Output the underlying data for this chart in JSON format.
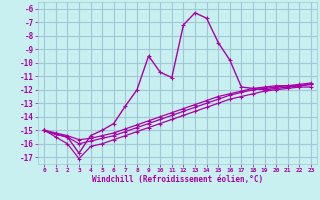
{
  "xlabel": "Windchill (Refroidissement éolien,°C)",
  "bg_color": "#c8f0f0",
  "grid_color": "#a0c8d8",
  "line_color": "#aa00aa",
  "ylim": [
    -17.5,
    -5.5
  ],
  "xlim": [
    -0.5,
    23.5
  ],
  "yticks": [
    -17,
    -16,
    -15,
    -14,
    -13,
    -12,
    -11,
    -10,
    -9,
    -8,
    -7,
    -6
  ],
  "xticks": [
    0,
    1,
    2,
    3,
    4,
    5,
    6,
    7,
    8,
    9,
    10,
    11,
    12,
    13,
    14,
    15,
    16,
    17,
    18,
    19,
    20,
    21,
    22,
    23
  ],
  "series": [
    {
      "x": [
        0,
        1,
        2,
        3,
        4,
        5,
        6,
        7,
        8,
        9,
        10,
        11,
        12,
        13,
        14,
        15,
        16,
        17,
        18,
        19,
        20,
        21,
        22,
        23
      ],
      "y": [
        -15.0,
        -15.3,
        -15.5,
        -16.7,
        -15.4,
        -15.0,
        -14.5,
        -13.2,
        -12.0,
        -9.5,
        -10.7,
        -11.1,
        -7.2,
        -6.3,
        -6.7,
        -8.5,
        -9.8,
        -11.8,
        -11.9,
        -12.0,
        -11.9,
        -11.8,
        -11.7,
        -11.6
      ],
      "marker": true,
      "linewidth": 1.0
    },
    {
      "x": [
        0,
        1,
        2,
        3,
        4,
        5,
        6,
        7,
        8,
        9,
        10,
        11,
        12,
        13,
        14,
        15,
        16,
        17,
        18,
        19,
        20,
        21,
        22,
        23
      ],
      "y": [
        -15.0,
        -15.2,
        -15.4,
        -15.7,
        -15.6,
        -15.4,
        -15.2,
        -14.9,
        -14.6,
        -14.3,
        -14.0,
        -13.7,
        -13.4,
        -13.1,
        -12.8,
        -12.5,
        -12.3,
        -12.1,
        -11.9,
        -11.8,
        -11.7,
        -11.7,
        -11.6,
        -11.5
      ],
      "marker": true,
      "linewidth": 0.9
    },
    {
      "x": [
        0,
        1,
        2,
        3,
        4,
        5,
        6,
        7,
        8,
        9,
        10,
        11,
        12,
        13,
        14,
        15,
        16,
        17,
        18,
        19,
        20,
        21,
        22,
        23
      ],
      "y": [
        -15.0,
        -15.3,
        -15.5,
        -16.0,
        -15.8,
        -15.6,
        -15.4,
        -15.1,
        -14.8,
        -14.5,
        -14.2,
        -13.9,
        -13.6,
        -13.3,
        -13.0,
        -12.7,
        -12.4,
        -12.2,
        -12.0,
        -11.9,
        -11.8,
        -11.7,
        -11.7,
        -11.6
      ],
      "marker": true,
      "linewidth": 0.9
    },
    {
      "x": [
        0,
        1,
        2,
        3,
        4,
        5,
        6,
        7,
        8,
        9,
        10,
        11,
        12,
        13,
        14,
        15,
        16,
        17,
        18,
        19,
        20,
        21,
        22,
        23
      ],
      "y": [
        -15.0,
        -15.5,
        -16.0,
        -17.1,
        -16.2,
        -16.0,
        -15.7,
        -15.4,
        -15.1,
        -14.8,
        -14.5,
        -14.2,
        -13.9,
        -13.6,
        -13.3,
        -13.0,
        -12.7,
        -12.5,
        -12.3,
        -12.1,
        -12.0,
        -11.9,
        -11.8,
        -11.8
      ],
      "marker": true,
      "linewidth": 0.9
    }
  ]
}
